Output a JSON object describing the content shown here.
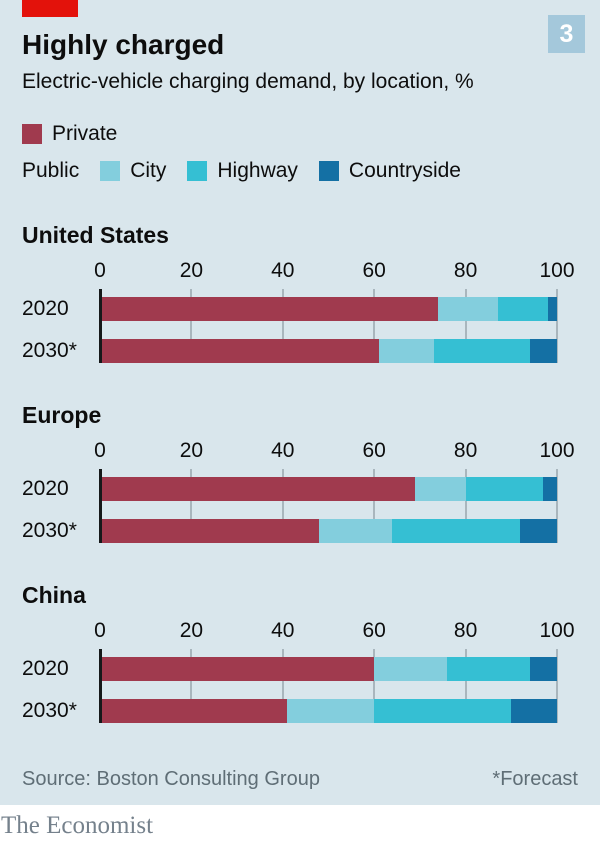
{
  "header": {
    "title": "Highly charged",
    "subtitle": "Electric-vehicle charging demand, by location, %",
    "figure_number": "3"
  },
  "legend": {
    "private": {
      "label": "Private",
      "color": "#A03A4E"
    },
    "public_group_label": "Public",
    "public_items": [
      {
        "label": "City",
        "color": "#83CEDD"
      },
      {
        "label": "Highway",
        "color": "#35BFD3"
      },
      {
        "label": "Countryside",
        "color": "#1470A4"
      }
    ]
  },
  "chart_data": {
    "type": "bar",
    "stacked": true,
    "orientation": "horizontal",
    "unit": "%",
    "xlim": [
      0,
      100
    ],
    "xticks": [
      0,
      20,
      40,
      60,
      80,
      100
    ],
    "grid": true,
    "segments": [
      "Private",
      "Public: City",
      "Public: Highway",
      "Public: Countryside"
    ],
    "segment_colors": [
      "#A03A4E",
      "#83CEDD",
      "#35BFD3",
      "#1470A4"
    ],
    "groups": [
      {
        "region": "United States",
        "rows": [
          {
            "label": "2020",
            "values": [
              74,
              13,
              11,
              2
            ]
          },
          {
            "label": "2030*",
            "values": [
              61,
              12,
              21,
              6
            ]
          }
        ]
      },
      {
        "region": "Europe",
        "rows": [
          {
            "label": "2020",
            "values": [
              69,
              11,
              17,
              3
            ]
          },
          {
            "label": "2030*",
            "values": [
              48,
              16,
              28,
              8
            ]
          }
        ]
      },
      {
        "region": "China",
        "rows": [
          {
            "label": "2020",
            "values": [
              60,
              16,
              18,
              6
            ]
          },
          {
            "label": "2030*",
            "values": [
              41,
              19,
              30,
              10
            ]
          }
        ]
      }
    ]
  },
  "colors": {
    "background": "#D9E6EC",
    "red_tag": "#E3120B",
    "badge_background": "#A4C8DB",
    "gridline": "#A9B6BD",
    "axis_line": "#16191A",
    "text": "#0D0D0D",
    "footer_text": "#5F6E76",
    "brand_text": "#75818C"
  },
  "footer": {
    "source": "Source: Boston Consulting Group",
    "forecast_note": "*Forecast",
    "brand": "The Economist"
  }
}
